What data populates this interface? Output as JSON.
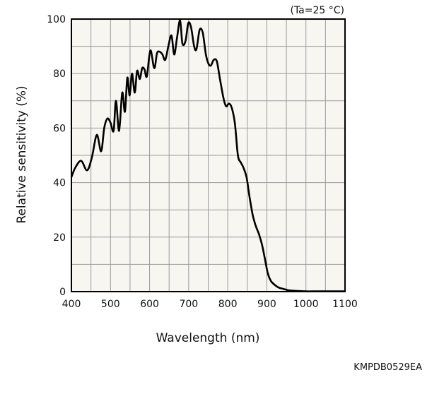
{
  "chart_data": {
    "type": "line",
    "title": "",
    "annotation": "(Ta=25 °C)",
    "xlabel": "Wavelength (nm)",
    "ylabel": "Relative sensitivity (%)",
    "figure_code": "KMPDB0529EA",
    "xlim": [
      400,
      1100
    ],
    "ylim": [
      0,
      100
    ],
    "x_ticks": [
      400,
      500,
      600,
      700,
      800,
      900,
      1000,
      1100
    ],
    "y_ticks": [
      0,
      20,
      40,
      60,
      80,
      100
    ],
    "x_tick_labels": [
      "400",
      "500",
      "600",
      "700",
      "800",
      "900",
      "1000",
      "1100"
    ],
    "y_tick_labels": [
      "0",
      "20",
      "40",
      "60",
      "80",
      "100"
    ],
    "grid": true,
    "colors": {
      "plot_background": "#f8f6f0",
      "grid": "#9a9a9a",
      "line": "#000000",
      "frame": "#000000"
    },
    "series": [
      {
        "x": [
          400,
          410,
          425,
          440,
          452,
          465,
          476,
          484,
          492,
          500,
          508,
          514,
          522,
          530,
          537,
          543,
          549,
          555,
          562,
          568,
          575,
          581,
          587,
          593,
          602,
          612,
          619,
          626,
          633,
          640,
          648,
          656,
          663,
          670,
          678,
          684,
          692,
          699,
          706,
          714,
          720,
          728,
          736,
          744,
          751,
          757,
          764,
          772,
          780,
          789,
          796,
          803,
          810,
          818,
          826,
          833,
          840,
          848,
          856,
          864,
          872,
          880,
          888,
          895,
          902,
          910,
          920,
          930,
          942,
          955,
          970,
          985,
          1000,
          1015,
          1030,
          1045,
          1060,
          1075,
          1090,
          1100
        ],
        "y": [
          42,
          45.5,
          48,
          44.5,
          49,
          57.5,
          51.5,
          60,
          63.5,
          62,
          59,
          70,
          59,
          73,
          66,
          78.5,
          72,
          80,
          73,
          81,
          78,
          82,
          81.5,
          79,
          88.5,
          82,
          87.5,
          88,
          87,
          85,
          90,
          94,
          87,
          93,
          99.5,
          91,
          92,
          98.5,
          97,
          90,
          89,
          96,
          95,
          87,
          83.5,
          83,
          85,
          84.5,
          78,
          71,
          68,
          69,
          67.5,
          62,
          50,
          47.5,
          45.5,
          42,
          34.5,
          28,
          24,
          21,
          17,
          12,
          7,
          4,
          2.5,
          1.5,
          1,
          0.5,
          0.3,
          0.2,
          0.1,
          0.1,
          0.1,
          0.1,
          0.1,
          0.1,
          0.1,
          0.1
        ]
      }
    ]
  }
}
